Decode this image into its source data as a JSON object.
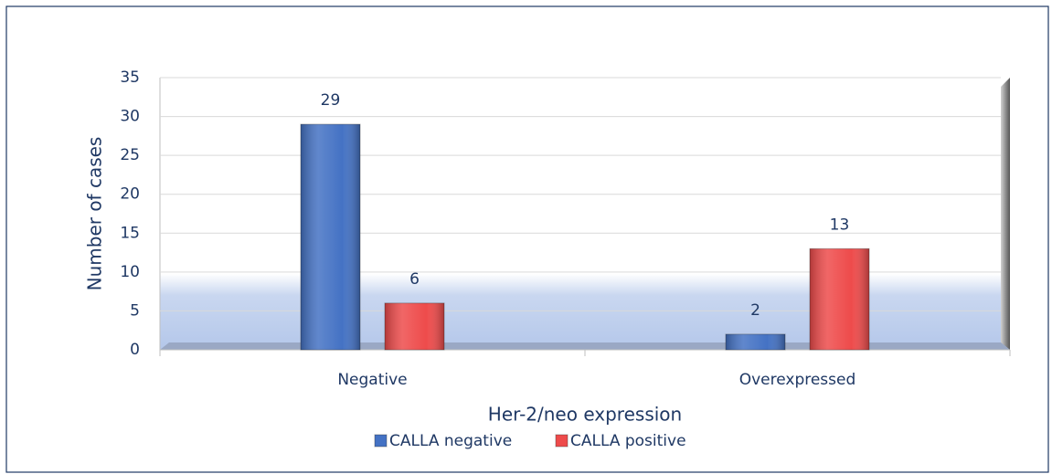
{
  "chart_data": {
    "type": "bar",
    "categories": [
      "Negative",
      "Overexpressed"
    ],
    "series": [
      {
        "name": "CALLA negative",
        "color": "#4472c4",
        "values": [
          29,
          2
        ]
      },
      {
        "name": "CALLA positive",
        "color": "#ee4b4b",
        "values": [
          6,
          13
        ]
      }
    ],
    "xlabel": "Her-2/neo expression",
    "ylabel": "Number of cases",
    "ylim": [
      0,
      35
    ],
    "yticks": [
      0,
      5,
      10,
      15,
      20,
      25,
      30,
      35
    ],
    "grid": true,
    "legend": "bottom"
  }
}
